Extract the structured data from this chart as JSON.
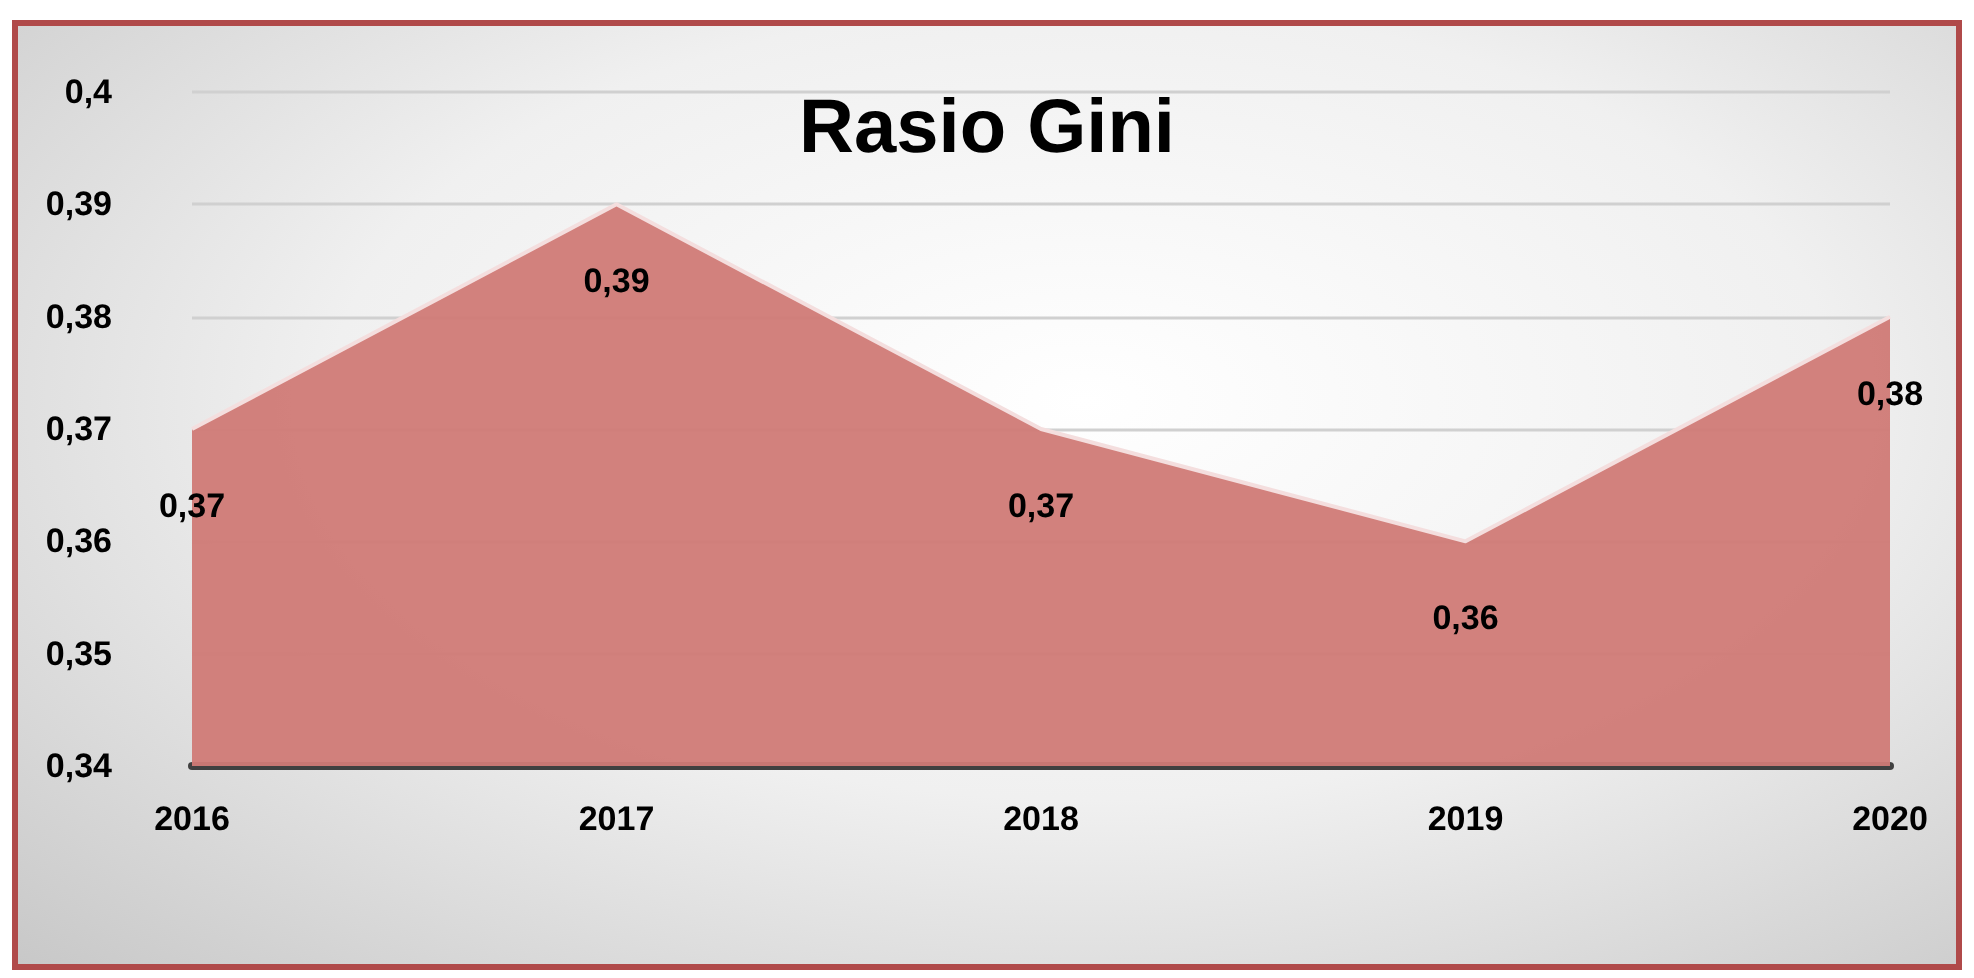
{
  "chart_data": {
    "type": "area",
    "title": "Rasio Gini",
    "categories": [
      "2016",
      "2017",
      "2018",
      "2019",
      "2020"
    ],
    "series": [
      {
        "color": "#d07a76",
        "values": [
          0.37,
          0.39,
          0.37,
          0.36,
          0.38
        ],
        "value_labels": [
          "0,37",
          "0,39",
          "0,37",
          "0,36",
          "0,38"
        ]
      }
    ],
    "ylim": [
      0.34,
      0.4
    ],
    "yticks": [
      {
        "value": 0.34,
        "label": "0,34"
      },
      {
        "value": 0.35,
        "label": "0,35"
      },
      {
        "value": 0.36,
        "label": "0,36"
      },
      {
        "value": 0.37,
        "label": "0,37"
      },
      {
        "value": 0.38,
        "label": "0,38"
      },
      {
        "value": 0.39,
        "label": "0,39"
      },
      {
        "value": 0.4,
        "label": "0,4"
      }
    ],
    "grid": "y",
    "marker": "none"
  }
}
